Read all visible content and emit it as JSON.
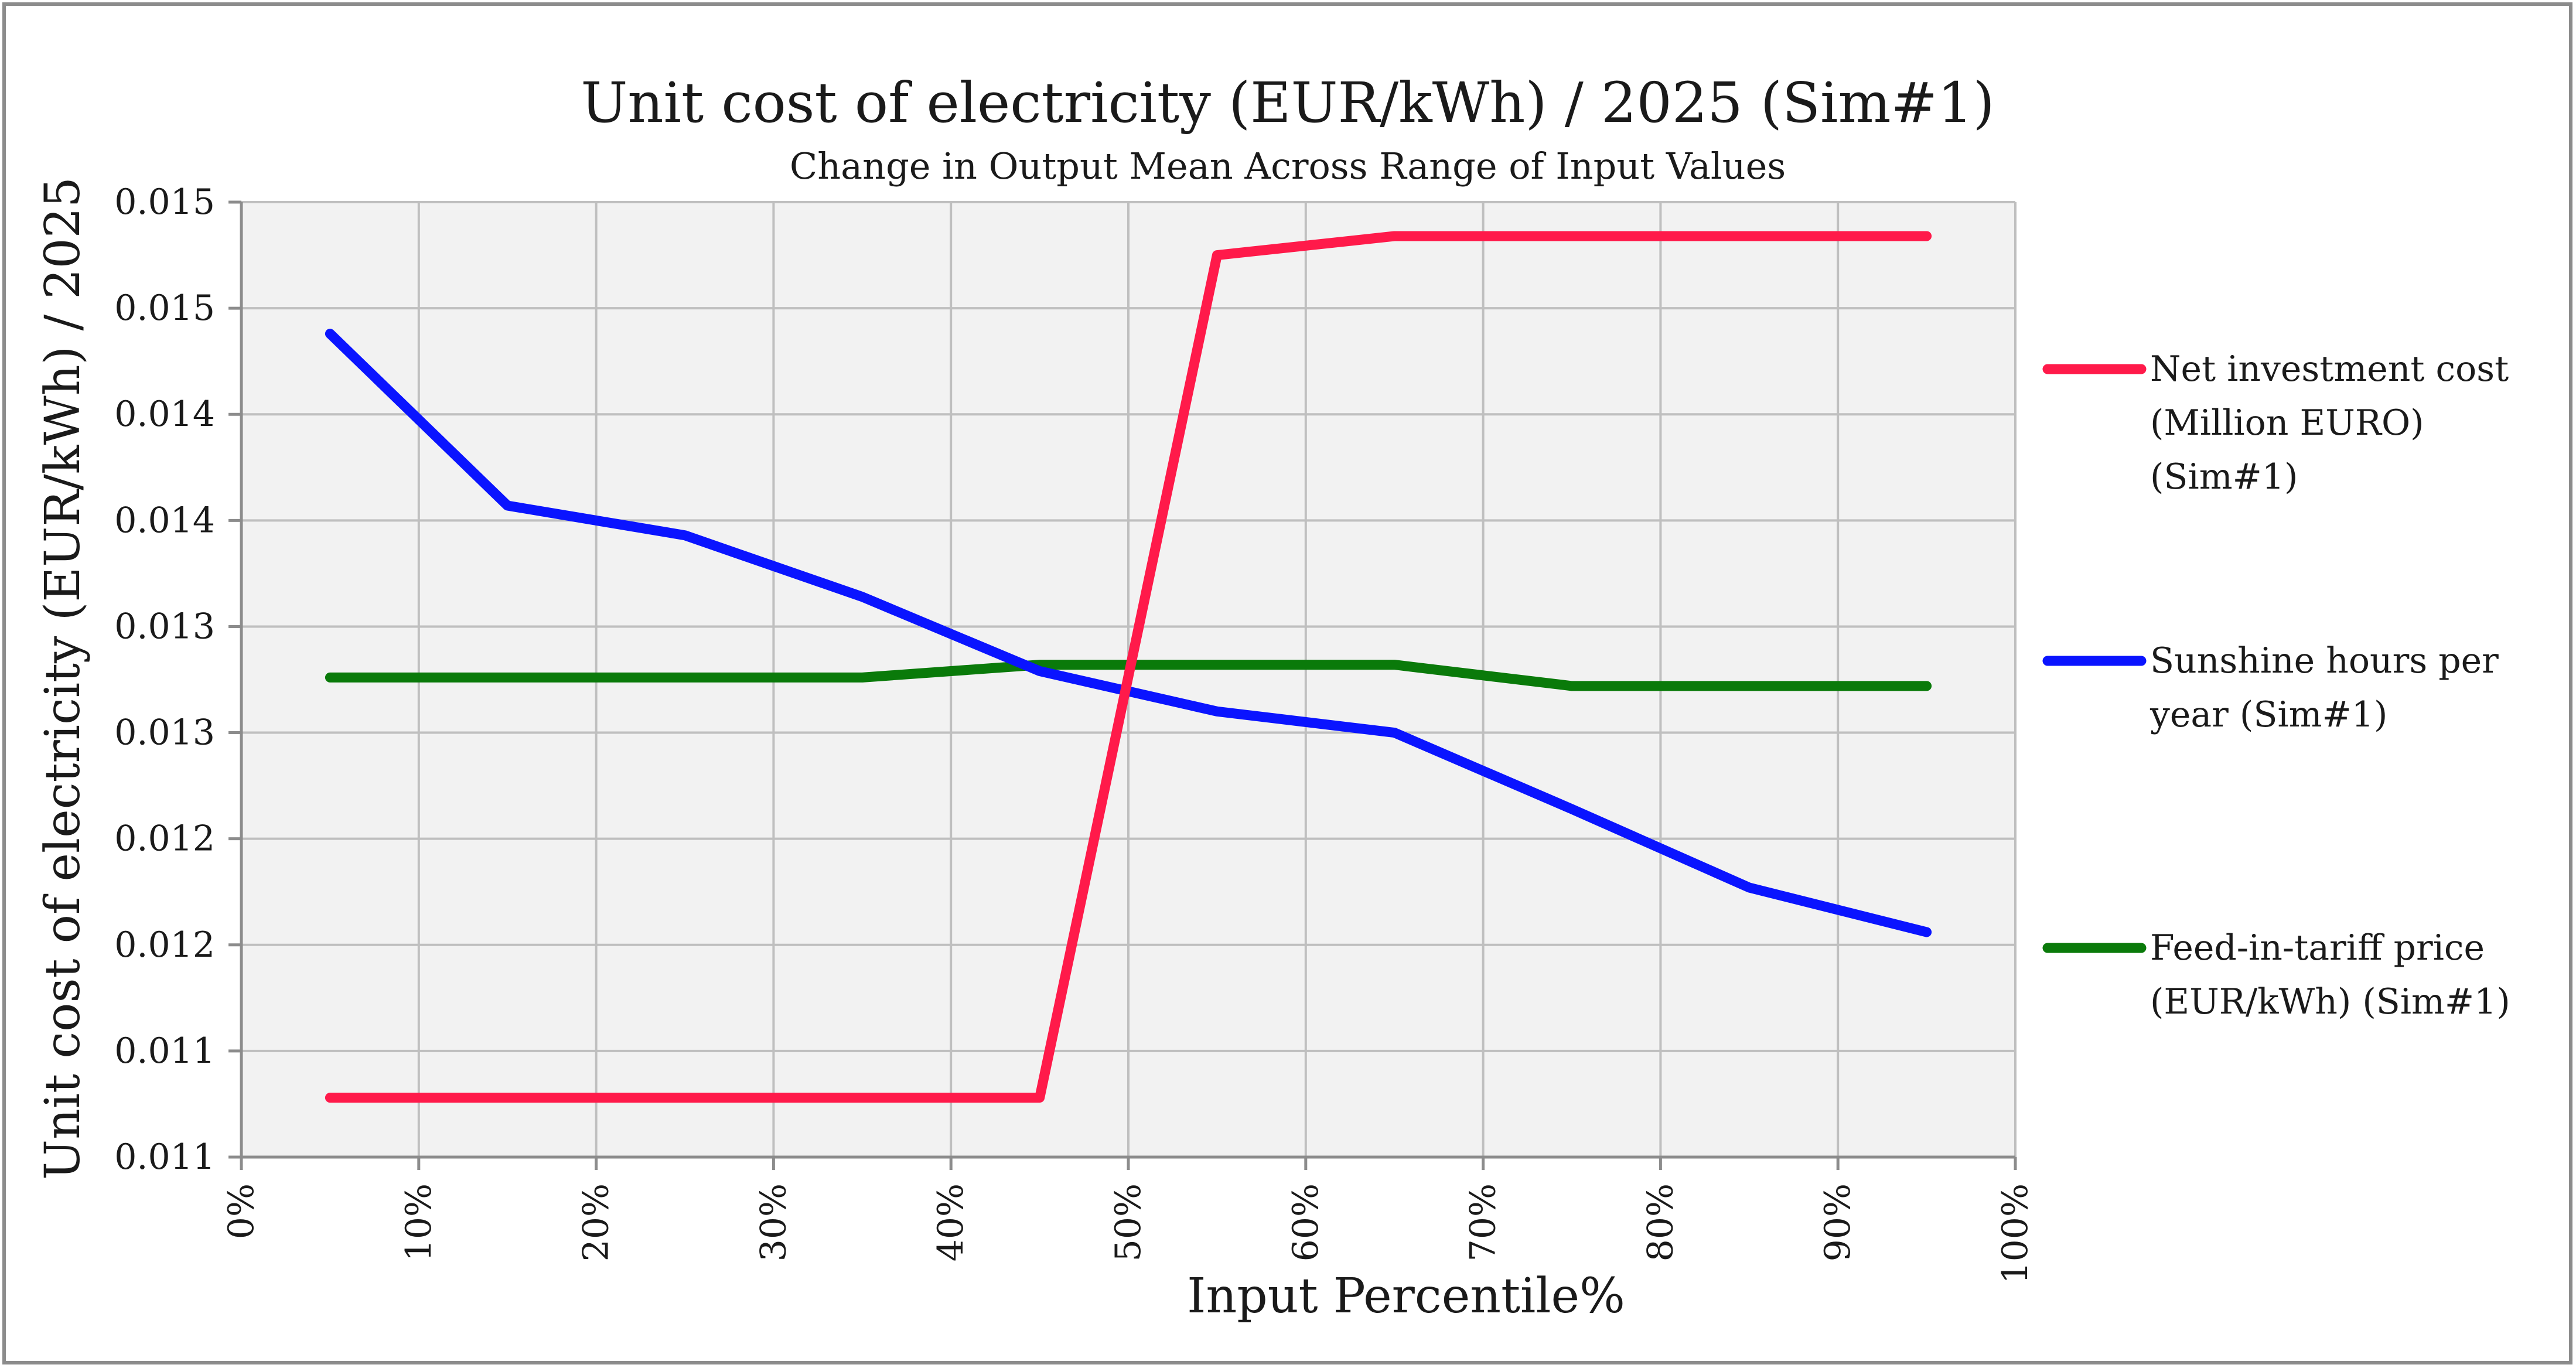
{
  "chart_data": {
    "type": "line",
    "title": "Unit cost of electricity (EUR/kWh) / 2025 (Sim#1)",
    "subtitle": "Change in Output Mean Across Range of Input Values",
    "xlabel": "Input Percentile%",
    "ylabel": "Unit cost of electricity (EUR/kWh) / 2025",
    "xlim": [
      0,
      100
    ],
    "ylim": [
      0.0105,
      0.015
    ],
    "grid": true,
    "legend_position": "right",
    "x_ticks": [
      0,
      10,
      20,
      30,
      40,
      50,
      60,
      70,
      80,
      90,
      100
    ],
    "x_tick_labels": [
      "0%",
      "10%",
      "20%",
      "30%",
      "40%",
      "50%",
      "60%",
      "70%",
      "80%",
      "90%",
      "100%"
    ],
    "y_ticks": [
      0.0105,
      0.011,
      0.0115,
      0.012,
      0.0125,
      0.013,
      0.0135,
      0.014,
      0.0145,
      0.015
    ],
    "y_tick_labels": [
      "0.011",
      "0.011",
      "0.012",
      "0.012",
      "0.013",
      "0.013",
      "0.014",
      "0.014",
      "0.015",
      "0.015"
    ],
    "x": [
      5,
      15,
      25,
      35,
      45,
      55,
      65,
      75,
      85,
      95
    ],
    "series": [
      {
        "name_lines": [
          "Net investment cost",
          "(Million EURO)",
          "(Sim#1)"
        ],
        "color": "#ff1a4a",
        "values": [
          0.01078,
          0.01078,
          0.01078,
          0.01078,
          0.01078,
          0.01475,
          0.01484,
          0.01484,
          0.01484,
          0.01484
        ]
      },
      {
        "name_lines": [
          "Sunshine hours per",
          "year (Sim#1)"
        ],
        "color": "#0a14ff",
        "values": [
          0.01438,
          0.01357,
          0.01343,
          0.01314,
          0.01279,
          0.0126,
          0.0125,
          0.01214,
          0.01177,
          0.01156
        ]
      },
      {
        "name_lines": [
          "Feed-in-tariff price",
          "(EUR/kWh) (Sim#1)"
        ],
        "color": "#0a7a0a",
        "values": [
          0.01276,
          0.01276,
          0.01276,
          0.01276,
          0.01282,
          0.01282,
          0.01282,
          0.01272,
          0.01272,
          0.01272
        ]
      }
    ]
  }
}
